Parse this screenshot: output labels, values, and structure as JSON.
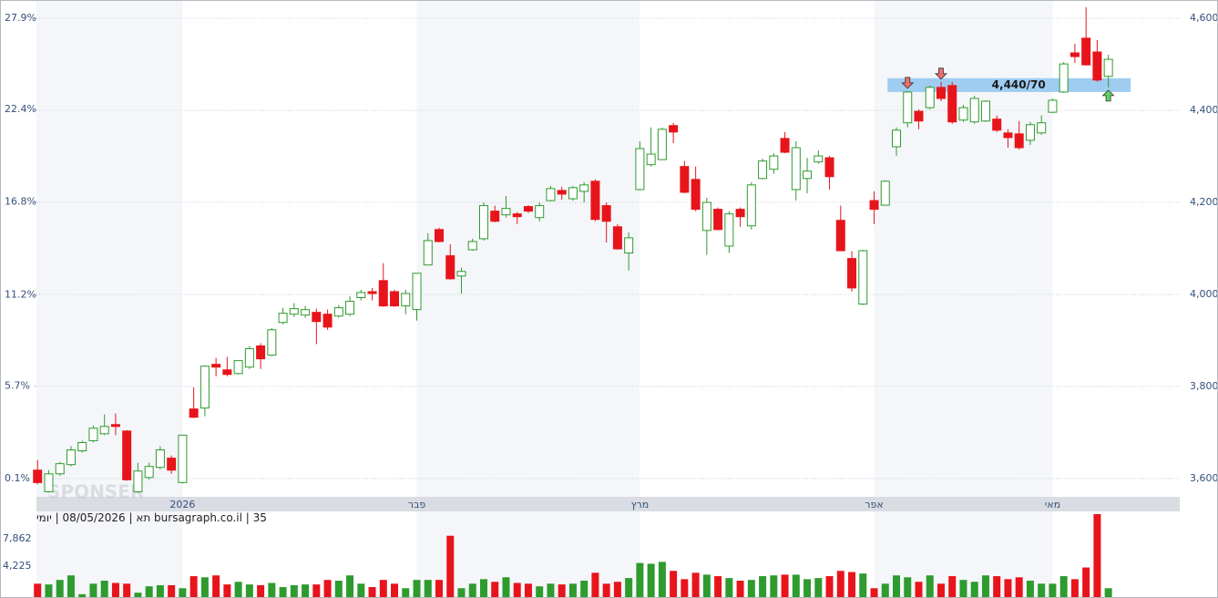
{
  "chart_data": [
    {
      "type": "candlestick",
      "open": [
        3618,
        3571,
        3610,
        3630,
        3660,
        3682,
        3697,
        3717,
        3703,
        3571,
        3602,
        3624,
        3644,
        3591,
        3751,
        3753,
        3848,
        3836,
        3828,
        3842,
        3888,
        3868,
        3939,
        3957,
        3955,
        3961,
        3957,
        3953,
        3957,
        3993,
        4006,
        4030,
        4006,
        3975,
        3967,
        4064,
        4141,
        4084,
        4040,
        4097,
        4121,
        4181,
        4173,
        4175,
        4191,
        4167,
        4204,
        4226,
        4208,
        4224,
        4246,
        4193,
        4147,
        4090,
        4228,
        4282,
        4293,
        4367,
        4278,
        4250,
        4139,
        4185,
        4105,
        4185,
        4149,
        4252,
        4272,
        4339,
        4228,
        4252,
        4288,
        4297,
        4161,
        4078,
        3979,
        4204,
        4194,
        4321,
        4373,
        4398,
        4406,
        4450,
        4454,
        4379,
        4375,
        4377,
        4381,
        4351,
        4349,
        4335,
        4351,
        4396,
        4440,
        4525,
        4557,
        4527,
        4474
      ],
      "high": [
        3640,
        3618,
        3636,
        3670,
        3682,
        3715,
        3739,
        3741,
        3705,
        3634,
        3634,
        3670,
        3650,
        3694,
        3798,
        3846,
        3862,
        3864,
        3856,
        3888,
        3894,
        3927,
        3971,
        3981,
        3975,
        3969,
        3967,
        3977,
        3996,
        4010,
        4014,
        4068,
        4010,
        4010,
        4046,
        4133,
        4145,
        4109,
        4058,
        4121,
        4200,
        4193,
        4214,
        4179,
        4194,
        4200,
        4236,
        4234,
        4236,
        4244,
        4250,
        4200,
        4153,
        4135,
        4333,
        4363,
        4363,
        4373,
        4290,
        4278,
        4210,
        4189,
        4181,
        4189,
        4244,
        4295,
        4307,
        4353,
        4333,
        4297,
        4313,
        4301,
        4193,
        4094,
        4097,
        4224,
        4248,
        4363,
        4442,
        4402,
        4454,
        4462,
        4462,
        4412,
        4432,
        4422,
        4389,
        4359,
        4377,
        4375,
        4389,
        4426,
        4505,
        4545,
        4624,
        4553,
        4521
      ],
      "low": [
        3587,
        3569,
        3606,
        3626,
        3656,
        3678,
        3694,
        3694,
        3595,
        3569,
        3597,
        3620,
        3610,
        3589,
        3731,
        3735,
        3822,
        3822,
        3826,
        3838,
        3838,
        3866,
        3935,
        3951,
        3949,
        3892,
        3923,
        3949,
        3953,
        3987,
        3987,
        3973,
        3973,
        3957,
        3943,
        4064,
        4113,
        4032,
        4002,
        4095,
        4117,
        4157,
        4167,
        4153,
        4177,
        4159,
        4202,
        4206,
        4204,
        4200,
        4159,
        4113,
        4097,
        4052,
        4226,
        4278,
        4292,
        4329,
        4220,
        4181,
        4086,
        4139,
        4090,
        4147,
        4141,
        4250,
        4262,
        4307,
        4204,
        4220,
        4284,
        4228,
        4094,
        4006,
        3977,
        4153,
        4193,
        4301,
        4363,
        4359,
        4402,
        4420,
        4371,
        4375,
        4371,
        4375,
        4353,
        4319,
        4315,
        4325,
        4347,
        4394,
        4438,
        4503,
        4497,
        4462,
        4450
      ],
      "close": [
        3591,
        3610,
        3632,
        3662,
        3678,
        3709,
        3713,
        3713,
        3597,
        3616,
        3626,
        3662,
        3618,
        3694,
        3733,
        3844,
        3842,
        3826,
        3856,
        3882,
        3860,
        3923,
        3959,
        3969,
        3967,
        3941,
        3929,
        3971,
        3985,
        4004,
        4002,
        3975,
        3975,
        4002,
        4046,
        4117,
        4115,
        4034,
        4050,
        4115,
        4193,
        4159,
        4187,
        4169,
        4181,
        4193,
        4230,
        4218,
        4232,
        4238,
        4163,
        4159,
        4099,
        4123,
        4317,
        4305,
        4359,
        4353,
        4222,
        4185,
        4200,
        4141,
        4175,
        4169,
        4238,
        4290,
        4301,
        4309,
        4319,
        4268,
        4301,
        4256,
        4095,
        4014,
        4095,
        4185,
        4246,
        4357,
        4440,
        4377,
        4450,
        4426,
        4375,
        4406,
        4426,
        4420,
        4357,
        4341,
        4319,
        4369,
        4373,
        4422,
        4501,
        4517,
        4499,
        4466,
        4511
      ],
      "up_color": "#2e9b2e",
      "down_color": "#e8141b",
      "xlim": [
        -0.1,
        102.4
      ],
      "xticks": [
        {
          "value": 13,
          "label": "2026"
        },
        {
          "value": 34,
          "label": "פבר"
        },
        {
          "value": 54,
          "label": "מרץ"
        },
        {
          "value": 75,
          "label": "אפר"
        },
        {
          "value": 91,
          "label": "מאי"
        }
      ],
      "ylim": [
        3560,
        4640
      ],
      "yticks": [
        {
          "value": 3600,
          "label": "3,600"
        },
        {
          "value": 3800,
          "label": "3,800"
        },
        {
          "value": 4000,
          "label": "4,000"
        },
        {
          "value": 4200,
          "label": "4,200"
        },
        {
          "value": 4400,
          "label": "4,400"
        },
        {
          "value": 4600,
          "label": "4,600"
        }
      ],
      "y2lim": [
        -1.0,
        29.0
      ],
      "y2ticks": [
        {
          "value": 0.1,
          "label": "0.1%"
        },
        {
          "value": 5.7,
          "label": "5.7%"
        },
        {
          "value": 11.2,
          "label": "11.2%"
        },
        {
          "value": 16.8,
          "label": "16.8%"
        },
        {
          "value": 22.4,
          "label": "22.4%"
        },
        {
          "value": 27.9,
          "label": "27.9%"
        }
      ],
      "grid": true,
      "zone": {
        "label": "4,440/70",
        "low": 4440,
        "high": 4470,
        "from": 76.2,
        "to": 98,
        "color": "#9fcdf2"
      },
      "signals": [
        {
          "index": 78,
          "direction": "down",
          "color": "#f26b6b"
        },
        {
          "index": 81,
          "direction": "down",
          "color": "#f26b6b"
        },
        {
          "index": 96,
          "direction": "up",
          "color": "#5fd35f"
        }
      ],
      "watermark": "SPONSER"
    },
    {
      "type": "bar",
      "title": "bursagraph.co.il | 35 תא | 08/05/2026 | יומי",
      "values": [
        1900,
        1800,
        2400,
        3000,
        500,
        1900,
        2300,
        2000,
        1900,
        700,
        1550,
        1700,
        1700,
        1300,
        2900,
        2750,
        3000,
        1800,
        2150,
        1800,
        1700,
        2000,
        1450,
        1700,
        1800,
        1800,
        2400,
        2300,
        3000,
        1900,
        1450,
        2400,
        1900,
        1300,
        2400,
        2400,
        2400,
        8266,
        1300,
        1900,
        2500,
        2150,
        2750,
        2000,
        1900,
        1550,
        1900,
        1800,
        1900,
        2300,
        3350,
        1900,
        2150,
        2650,
        4650,
        4550,
        4800,
        3600,
        2500,
        3350,
        3100,
        2900,
        2650,
        2300,
        2400,
        2900,
        3000,
        3100,
        3100,
        2500,
        2650,
        2900,
        3600,
        3450,
        3250,
        1300,
        1900,
        3000,
        2750,
        2150,
        3000,
        1900,
        2900,
        2400,
        2150,
        3000,
        2900,
        2500,
        2750,
        2300,
        1900,
        1900,
        2900,
        2500,
        4050,
        11140,
        1300
      ],
      "xlim": [
        -0.1,
        102.4
      ],
      "ylim": [
        0,
        11500
      ],
      "yticks": [
        {
          "value": 4225,
          "label": "4,225"
        },
        {
          "value": 7862,
          "label": "7,862"
        }
      ]
    }
  ]
}
